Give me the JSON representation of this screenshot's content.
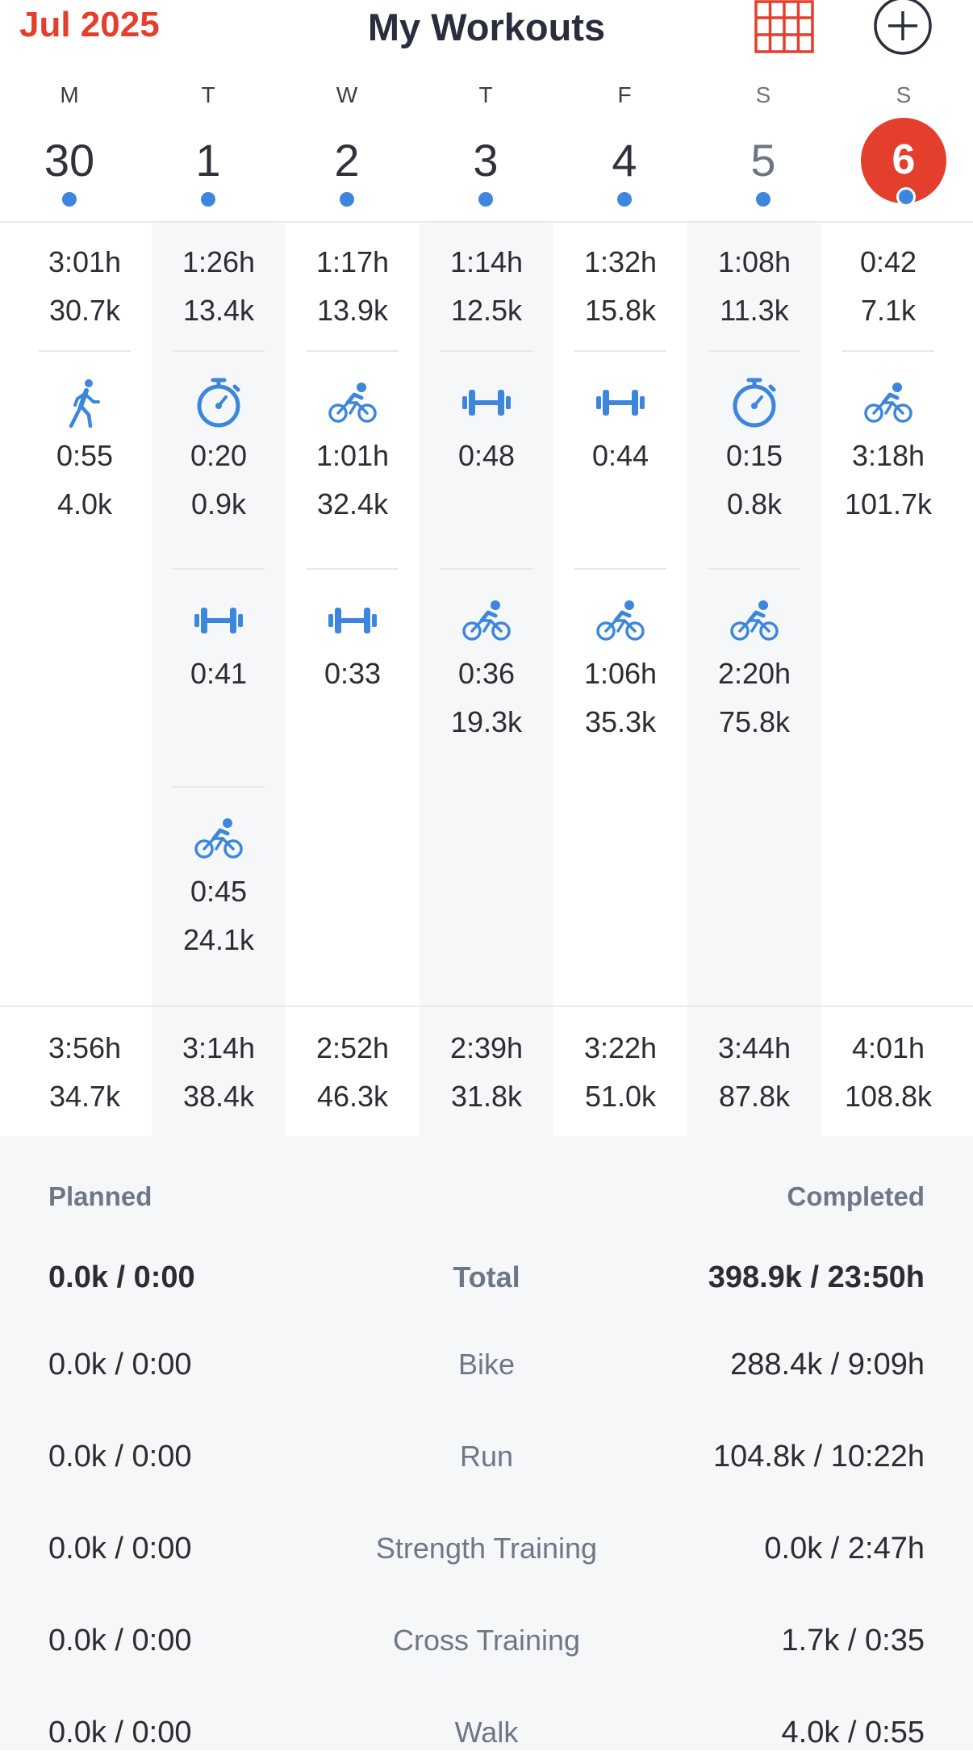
{
  "header": {
    "month": "Jul 2025",
    "title": "My Workouts",
    "calendar_icon": "calendar-grid-icon",
    "add_icon": "plus-circle-icon"
  },
  "colors": {
    "accent": "#e43f2c",
    "icon_blue": "#3d86de"
  },
  "days": [
    {
      "weekday": "M",
      "date": "30"
    },
    {
      "weekday": "T",
      "date": "1"
    },
    {
      "weekday": "W",
      "date": "2"
    },
    {
      "weekday": "T",
      "date": "3"
    },
    {
      "weekday": "F",
      "date": "4"
    },
    {
      "weekday": "S",
      "date": "5"
    },
    {
      "weekday": "S",
      "date": "6",
      "today": true
    }
  ],
  "columns": [
    {
      "summary": {
        "time": "3:01h",
        "dist": "30.7k"
      },
      "workouts": [
        {
          "icon": "walk-icon",
          "time": "0:55",
          "dist": "4.0k"
        }
      ],
      "total": {
        "time": "3:56h",
        "dist": "34.7k"
      }
    },
    {
      "summary": {
        "time": "1:26h",
        "dist": "13.4k"
      },
      "workouts": [
        {
          "icon": "stopwatch-icon",
          "time": "0:20",
          "dist": "0.9k"
        },
        {
          "icon": "dumbbell-icon",
          "time": "0:41",
          "dist": ""
        },
        {
          "icon": "bike-icon",
          "time": "0:45",
          "dist": "24.1k"
        }
      ],
      "total": {
        "time": "3:14h",
        "dist": "38.4k"
      }
    },
    {
      "summary": {
        "time": "1:17h",
        "dist": "13.9k"
      },
      "workouts": [
        {
          "icon": "bike-icon",
          "time": "1:01h",
          "dist": "32.4k"
        },
        {
          "icon": "dumbbell-icon",
          "time": "0:33",
          "dist": ""
        }
      ],
      "total": {
        "time": "2:52h",
        "dist": "46.3k"
      }
    },
    {
      "summary": {
        "time": "1:14h",
        "dist": "12.5k"
      },
      "workouts": [
        {
          "icon": "dumbbell-icon",
          "time": "0:48",
          "dist": ""
        },
        {
          "icon": "bike-icon",
          "time": "0:36",
          "dist": "19.3k"
        }
      ],
      "total": {
        "time": "2:39h",
        "dist": "31.8k"
      }
    },
    {
      "summary": {
        "time": "1:32h",
        "dist": "15.8k"
      },
      "workouts": [
        {
          "icon": "dumbbell-icon",
          "time": "0:44",
          "dist": ""
        },
        {
          "icon": "bike-icon",
          "time": "1:06h",
          "dist": "35.3k"
        }
      ],
      "total": {
        "time": "3:22h",
        "dist": "51.0k"
      }
    },
    {
      "summary": {
        "time": "1:08h",
        "dist": "11.3k"
      },
      "workouts": [
        {
          "icon": "stopwatch-icon",
          "time": "0:15",
          "dist": "0.8k"
        },
        {
          "icon": "bike-icon",
          "time": "2:20h",
          "dist": "75.8k"
        }
      ],
      "total": {
        "time": "3:44h",
        "dist": "87.8k"
      }
    },
    {
      "summary": {
        "time": "0:42",
        "dist": "7.1k"
      },
      "workouts": [
        {
          "icon": "bike-icon",
          "time": "3:18h",
          "dist": "101.7k"
        }
      ],
      "total": {
        "time": "4:01h",
        "dist": "108.8k"
      }
    }
  ],
  "summary": {
    "planned_label": "Planned",
    "completed_label": "Completed",
    "rows": [
      {
        "planned": "0.0k / 0:00",
        "category": "Total",
        "completed": "398.9k / 23:50h",
        "bold": true
      },
      {
        "planned": "0.0k / 0:00",
        "category": "Bike",
        "completed": "288.4k / 9:09h"
      },
      {
        "planned": "0.0k / 0:00",
        "category": "Run",
        "completed": "104.8k / 10:22h"
      },
      {
        "planned": "0.0k / 0:00",
        "category": "Strength Training",
        "completed": "0.0k / 2:47h"
      },
      {
        "planned": "0.0k / 0:00",
        "category": "Cross Training",
        "completed": "1.7k / 0:35"
      },
      {
        "planned": "0.0k / 0:00",
        "category": "Walk",
        "completed": "4.0k / 0:55"
      }
    ]
  }
}
